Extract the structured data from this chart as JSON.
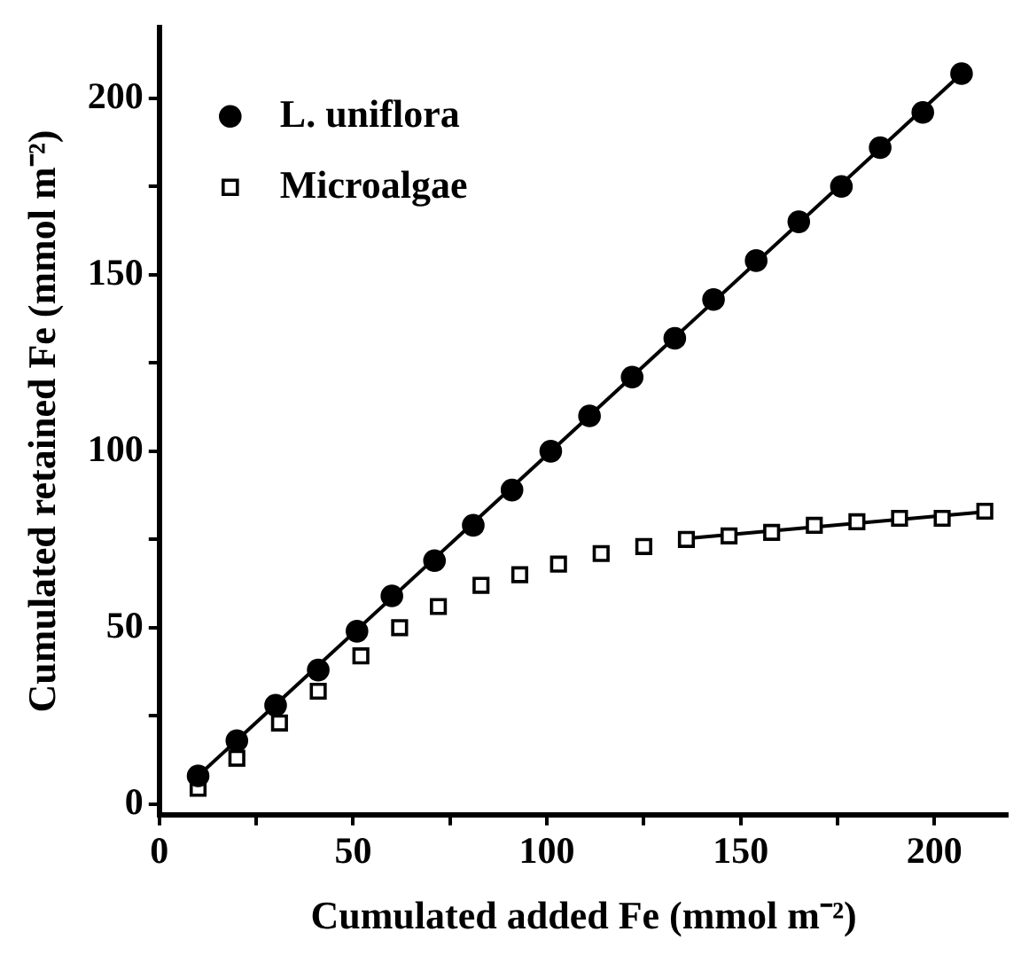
{
  "chart_data": {
    "type": "scatter",
    "xlabel": "Cumulated added Fe (mmol m⁻²)",
    "ylabel": "Cumulated retained Fe (mmol m⁻²)",
    "xlim": [
      0,
      219
    ],
    "ylim": [
      -3,
      220
    ],
    "xticks": [
      0,
      {
        "value": 25,
        "label": null
      },
      50,
      {
        "value": 75,
        "label": null
      },
      100,
      {
        "value": 125,
        "label": null
      },
      150,
      {
        "value": 175,
        "label": null
      },
      200
    ],
    "yticks": [
      0,
      {
        "value": 25,
        "label": null
      },
      50,
      {
        "value": 75,
        "label": null
      },
      100,
      {
        "value": 125,
        "label": null
      },
      150,
      {
        "value": 175,
        "label": null
      },
      200
    ],
    "grid": false,
    "legend": "top left",
    "series": [
      {
        "name": "L. uniflora",
        "color": "#000000",
        "marker": "circle",
        "x": [
          10,
          20,
          30,
          41,
          51,
          60,
          71,
          81,
          91,
          101,
          111,
          122,
          133,
          143,
          154,
          165,
          176,
          186,
          197,
          207
        ],
        "values": [
          8,
          18,
          28,
          38,
          49,
          59,
          69,
          79,
          89,
          100,
          110,
          121,
          132,
          143,
          154,
          165,
          175,
          186,
          196,
          207
        ]
      },
      {
        "name": "Microalgae",
        "color": "#000000",
        "marker": "square",
        "x": [
          10,
          20,
          31,
          41,
          52,
          62,
          72,
          83,
          93,
          103,
          114,
          125,
          136,
          147,
          158,
          169,
          180,
          191,
          202,
          213
        ],
        "values": [
          4.5,
          13,
          23,
          32,
          42,
          50,
          56,
          62,
          65,
          68,
          71,
          73,
          75,
          76,
          77,
          79,
          80,
          81,
          81,
          83
        ]
      },
      {
        "type": "line",
        "color": "#000000",
        "marker": "none",
        "line_style": "solid",
        "x": [
          10,
          207
        ],
        "values": [
          8,
          207
        ]
      },
      {
        "type": "line",
        "color": "#000000",
        "marker": "none",
        "line_style": "solid",
        "x": [
          136,
          213
        ],
        "values": [
          75.3,
          82.8
        ]
      }
    ]
  }
}
